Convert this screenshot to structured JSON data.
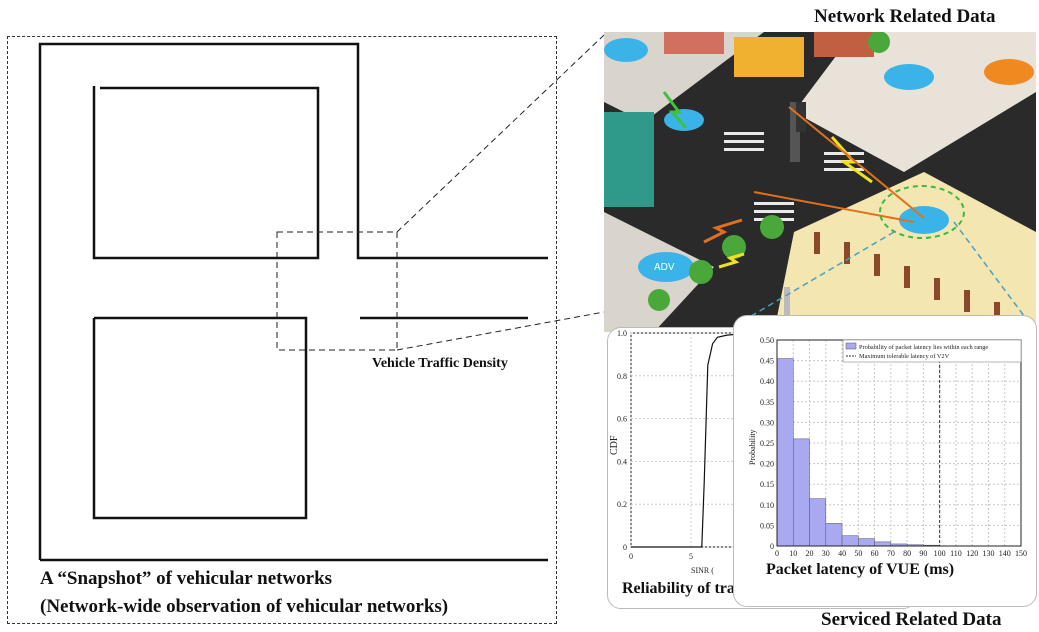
{
  "titles": {
    "network": "Network Related Data",
    "service": "Serviced Related Data"
  },
  "snapshot": {
    "caption_line1": "A “Snapshot” of vehicular networks",
    "caption_line2": "(Network-wide observation of vehicular networks)",
    "density_label": "Vehicle Traffic Density"
  },
  "scene": {
    "vehicle_label": "ADV"
  },
  "cdf_chart": {
    "title": "Reliability of transmission",
    "xlabel": "SINR (",
    "ylabel": "CDF",
    "x_ticks": [
      "0",
      "5"
    ],
    "y_ticks": [
      "0",
      "0.2",
      "0.4",
      "0.6",
      "0.8",
      "1.0"
    ]
  },
  "chart_data": [
    {
      "type": "line",
      "title": "Reliability of transmission",
      "xlabel": "SINR (",
      "ylabel": "CDF",
      "xlim": [
        0,
        10
      ],
      "ylim": [
        0,
        1.0
      ],
      "series": [
        {
          "x": [
            0,
            5.9,
            6.1,
            6.4,
            6.8,
            7.2,
            8,
            10
          ],
          "values": [
            0,
            0.0,
            0.3,
            0.85,
            0.95,
            0.98,
            0.99,
            1.0
          ]
        }
      ]
    },
    {
      "type": "bar",
      "title": "Packet latency of VUE (ms)",
      "xlabel": "Packet latency of VUE (ms)",
      "ylabel": "Probability",
      "ylim": [
        0,
        0.5
      ],
      "xlim": [
        0,
        150
      ],
      "x_ticks": [
        "0",
        "10",
        "20",
        "30",
        "40",
        "50",
        "60",
        "70",
        "80",
        "90",
        "100",
        "110",
        "120",
        "130",
        "140",
        "150"
      ],
      "y_ticks": [
        "0",
        "0.05",
        "0.10",
        "0.15",
        "0.20",
        "0.25",
        "0.30",
        "0.35",
        "0.40",
        "0.45",
        "0.50"
      ],
      "bin_width": 10,
      "bin_starts": [
        0,
        10,
        20,
        30,
        40,
        50,
        60,
        70,
        80,
        90
      ],
      "values": [
        0.455,
        0.26,
        0.115,
        0.055,
        0.025,
        0.018,
        0.01,
        0.005,
        0.003,
        0.002
      ],
      "threshold": 100,
      "legend": {
        "placement": "top-right",
        "entries": [
          "Probability of packet latency lies within each range",
          "Maximum tolerable latency of V2V"
        ]
      },
      "bar_color": "#a9a9f2"
    }
  ]
}
